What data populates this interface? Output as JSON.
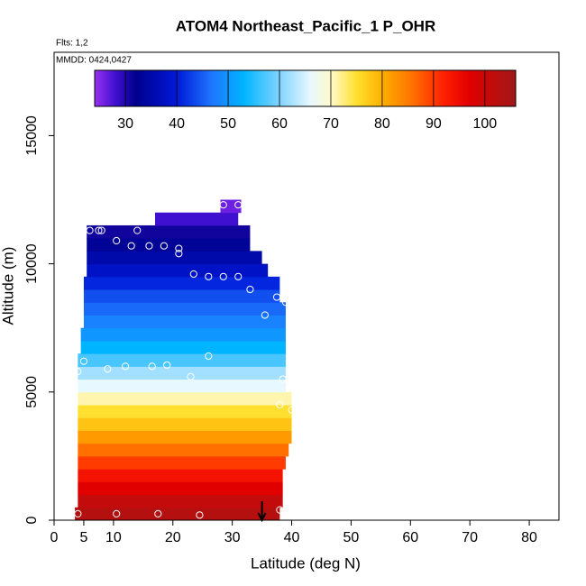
{
  "chart_data": {
    "type": "curtain",
    "title": "ATOM4 Northeast_Pacific_1 P_OHR",
    "flights": "Flts: 1,2",
    "dates": "MMDD: 0424,0427",
    "x_label": "Latitude (deg N)",
    "y_label": "Altitude (m)",
    "xlim": [
      0,
      85
    ],
    "ylim": [
      0,
      18250
    ],
    "xticks": [
      0,
      5,
      10,
      20,
      30,
      40,
      50,
      60,
      70,
      80
    ],
    "yticks": [
      0,
      5000,
      10000,
      15000
    ],
    "clim": [
      24,
      106
    ],
    "cticks": [
      30,
      40,
      50,
      60,
      70,
      80,
      90,
      100
    ],
    "colormap": [
      {
        "value": 24,
        "color": "#9a30f0"
      },
      {
        "value": 28,
        "color": "#4010d0"
      },
      {
        "value": 32,
        "color": "#00008c"
      },
      {
        "value": 40,
        "color": "#0018d8"
      },
      {
        "value": 47,
        "color": "#1e78ff"
      },
      {
        "value": 53,
        "color": "#00b4ff"
      },
      {
        "value": 60,
        "color": "#80d4ff"
      },
      {
        "value": 66,
        "color": "#e8f8ff"
      },
      {
        "value": 70,
        "color": "#fffacd"
      },
      {
        "value": 75,
        "color": "#ffe030"
      },
      {
        "value": 80,
        "color": "#ffb000"
      },
      {
        "value": 86,
        "color": "#ff7000"
      },
      {
        "value": 92,
        "color": "#ff2000"
      },
      {
        "value": 97,
        "color": "#e00000"
      },
      {
        "value": 106,
        "color": "#a01818"
      }
    ],
    "cells": [
      {
        "alt_min": 0,
        "alt_max": 500,
        "lat_min": 3.5,
        "lat_max": 38,
        "value": 103
      },
      {
        "alt_min": 500,
        "alt_max": 1000,
        "lat_min": 4,
        "lat_max": 38.5,
        "value": 101
      },
      {
        "alt_min": 1000,
        "alt_max": 1500,
        "lat_min": 4,
        "lat_max": 38.5,
        "value": 97
      },
      {
        "alt_min": 1500,
        "alt_max": 2000,
        "lat_min": 4,
        "lat_max": 38.5,
        "value": 94
      },
      {
        "alt_min": 2000,
        "alt_max": 2500,
        "lat_min": 4,
        "lat_max": 39,
        "value": 90
      },
      {
        "alt_min": 2500,
        "alt_max": 3000,
        "lat_min": 4,
        "lat_max": 39.5,
        "value": 86
      },
      {
        "alt_min": 3000,
        "alt_max": 3500,
        "lat_min": 4,
        "lat_max": 40,
        "value": 82
      },
      {
        "alt_min": 3500,
        "alt_max": 4000,
        "lat_min": 4,
        "lat_max": 40,
        "value": 78
      },
      {
        "alt_min": 4000,
        "alt_max": 4500,
        "lat_min": 4,
        "lat_max": 40,
        "value": 75
      },
      {
        "alt_min": 4500,
        "alt_max": 5000,
        "lat_min": 4,
        "lat_max": 40,
        "value": 71
      },
      {
        "alt_min": 5000,
        "alt_max": 5500,
        "lat_min": 4,
        "lat_max": 39,
        "value": 66
      },
      {
        "alt_min": 5500,
        "alt_max": 6000,
        "lat_min": 4,
        "lat_max": 39,
        "value": 62
      },
      {
        "alt_min": 6000,
        "alt_max": 6500,
        "lat_min": 4,
        "lat_max": 39,
        "value": 57
      },
      {
        "alt_min": 6500,
        "alt_max": 7000,
        "lat_min": 4.5,
        "lat_max": 39,
        "value": 53
      },
      {
        "alt_min": 7000,
        "alt_max": 7500,
        "lat_min": 4.5,
        "lat_max": 39,
        "value": 50
      },
      {
        "alt_min": 7500,
        "alt_max": 8000,
        "lat_min": 5,
        "lat_max": 39,
        "value": 48
      },
      {
        "alt_min": 8000,
        "alt_max": 8500,
        "lat_min": 5,
        "lat_max": 39,
        "value": 46
      },
      {
        "alt_min": 8500,
        "alt_max": 9000,
        "lat_min": 5,
        "lat_max": 38,
        "value": 44
      },
      {
        "alt_min": 9000,
        "alt_max": 9500,
        "lat_min": 5,
        "lat_max": 38,
        "value": 41
      },
      {
        "alt_min": 9500,
        "alt_max": 10000,
        "lat_min": 5.5,
        "lat_max": 36,
        "value": 38
      },
      {
        "alt_min": 10000,
        "alt_max": 10500,
        "lat_min": 5.5,
        "lat_max": 35,
        "value": 35
      },
      {
        "alt_min": 10500,
        "alt_max": 11000,
        "lat_min": 5.5,
        "lat_max": 33,
        "value": 33
      },
      {
        "alt_min": 11000,
        "alt_max": 11500,
        "lat_min": 5.5,
        "lat_max": 33,
        "value": 31
      },
      {
        "alt_min": 11500,
        "alt_max": 12000,
        "lat_min": 17,
        "lat_max": 31,
        "value": 28
      },
      {
        "alt_min": 12000,
        "alt_max": 12500,
        "lat_min": 28,
        "lat_max": 31.5,
        "value": 26
      }
    ],
    "samples": {
      "lat": [
        4,
        10.5,
        17.5,
        24.5,
        38,
        4,
        5,
        9,
        12,
        16.5,
        19,
        23,
        26,
        38.5,
        38,
        40,
        35.5,
        37.5,
        39,
        33,
        23.5,
        26,
        28.5,
        31,
        21,
        21,
        18.5,
        16,
        13,
        10.5,
        14,
        6,
        7.5,
        8,
        28.5,
        31
      ],
      "alt": [
        250,
        250,
        250,
        200,
        400,
        5800,
        6200,
        5900,
        6000,
        6000,
        6050,
        5600,
        6400,
        5500,
        4500,
        4300,
        8000,
        8700,
        8500,
        9000,
        9600,
        9500,
        9500,
        9500,
        10400,
        10600,
        10700,
        10700,
        10700,
        10900,
        11300,
        11300,
        11300,
        11300,
        12300,
        12300
      ]
    },
    "arrow_lat": 35
  }
}
